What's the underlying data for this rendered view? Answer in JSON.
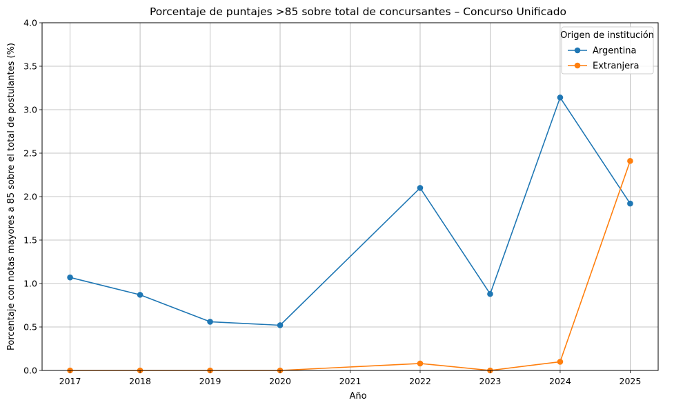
{
  "chart_data": {
    "type": "line",
    "title": "Porcentaje de puntajes >85 sobre total de concursantes – Concurso Unificado",
    "xlabel": "Año",
    "ylabel": "Porcentaje con notas mayores a 85 sobre el total de postulantes (%)",
    "x": [
      2017,
      2018,
      2019,
      2020,
      2021,
      2022,
      2023,
      2024,
      2025
    ],
    "xlim": [
      2016.6,
      2025.4
    ],
    "ylim": [
      0,
      4
    ],
    "yticks": [
      "0.0",
      "0.5",
      "1.0",
      "1.5",
      "2.0",
      "2.5",
      "3.0",
      "3.5",
      "4.0"
    ],
    "grid": true,
    "legend": {
      "title": "Origen de institución",
      "position": "top-right"
    },
    "series": [
      {
        "name": "Argentina",
        "color": "#1f77b4",
        "x": [
          2017,
          2018,
          2019,
          2020,
          2022,
          2023,
          2024,
          2025
        ],
        "values": [
          1.07,
          0.87,
          0.56,
          0.52,
          2.1,
          0.88,
          3.14,
          1.92
        ]
      },
      {
        "name": "Extranjera",
        "color": "#ff7f0e",
        "x": [
          2017,
          2018,
          2019,
          2020,
          2022,
          2023,
          2024,
          2025
        ],
        "values": [
          0.0,
          0.0,
          0.0,
          0.0,
          0.08,
          0.0,
          0.1,
          2.41
        ]
      }
    ]
  }
}
